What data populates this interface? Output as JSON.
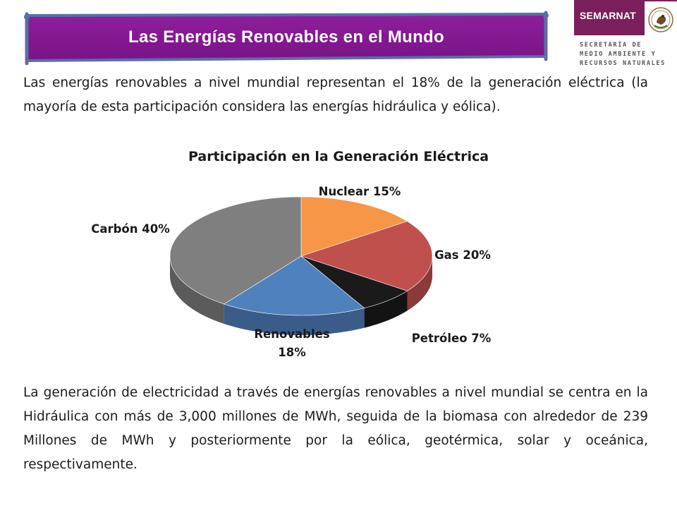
{
  "header": {
    "title": "Las Energías Renovables en el Mundo"
  },
  "logo": {
    "name": "SEMARNAT",
    "lines": [
      "SECRETARÍA DE",
      "MEDIO AMBIENTE Y",
      "RECURSOS NATURALES"
    ],
    "band_color": "#7b1f5c"
  },
  "intro_paragraph": "Las energías renovables a nivel mundial representan el 18% de la generación eléctrica (la mayoría de esta participación considera las energías hidráulica y eólica).",
  "outro_paragraph": "La generación de electricidad a través de energías renovables a nivel mundial se centra en la Hidráulica con más de 3,000 millones de MWh, seguida de la biomasa con alrededor de 239 Millones de MWh y posteriormente por la eólica, geotérmica, solar y oceánica, respectivamente.",
  "chart_data": {
    "type": "pie",
    "title": "Participación en la Generación Eléctrica",
    "style": "3d",
    "slices": [
      {
        "label": "Nuclear 15%",
        "value": 15,
        "color": "#f79646"
      },
      {
        "label": "Gas 20%",
        "value": 20,
        "color": "#c0504d"
      },
      {
        "label": "Petróleo 7%",
        "value": 7,
        "color": "#1a1a1a"
      },
      {
        "label": "Renovables 18%",
        "value": 18,
        "color": "#4f81bd"
      },
      {
        "label": "Carbón 40%",
        "value": 40,
        "color": "#7f7f7f"
      }
    ]
  }
}
